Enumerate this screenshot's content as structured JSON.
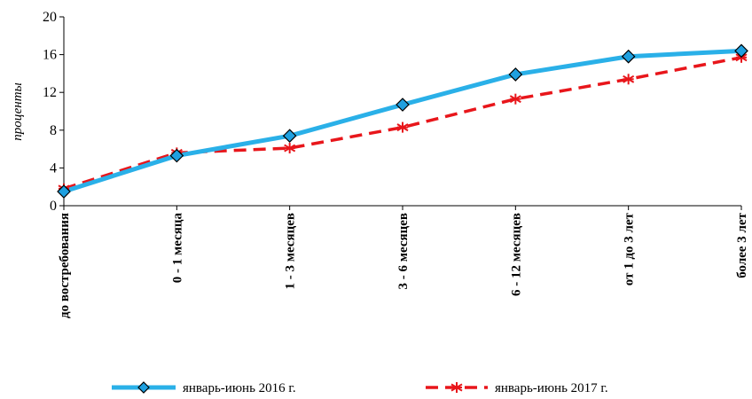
{
  "chart_data": {
    "type": "line",
    "title": "",
    "xlabel": "",
    "ylabel": "проценты",
    "ylim": [
      0,
      20
    ],
    "yticks": [
      0,
      4,
      8,
      12,
      16,
      20
    ],
    "categories": [
      "до востребования",
      "0 - 1 месяца",
      "1 - 3 месяцев",
      "3 - 6 месяцев",
      "6 - 12 месяцев",
      "от 1 до 3 лет",
      "более 3 лет"
    ],
    "series": [
      {
        "name": "январь-июнь 2016 г.",
        "values": [
          1.5,
          5.3,
          7.4,
          10.7,
          13.9,
          15.8,
          16.4
        ],
        "color": "#2AB0E8",
        "marker": "diamond",
        "marker_fill": "#1FA0E0",
        "style": "solid"
      },
      {
        "name": "январь-июнь 2017 г.",
        "values": [
          1.8,
          5.6,
          6.1,
          8.3,
          11.3,
          13.4,
          15.7
        ],
        "color": "#E8161B",
        "marker": "asterisk",
        "style": "dashed"
      }
    ],
    "grid": false,
    "legend": "bottom"
  }
}
